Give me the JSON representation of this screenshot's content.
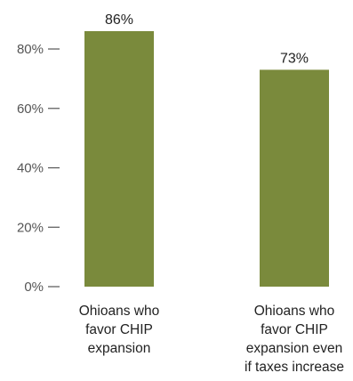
{
  "chart_data": {
    "type": "bar",
    "title": "",
    "xlabel": "",
    "ylabel": "",
    "ylim": [
      0,
      86
    ],
    "yticks": [
      0,
      20,
      40,
      60,
      80
    ],
    "ytick_labels": [
      "0%",
      "20%",
      "40%",
      "60%",
      "80%"
    ],
    "grid": false,
    "bar_color": "#7a8a3c",
    "categories": [
      [
        "Ohioans who",
        "favor CHIP",
        "expansion"
      ],
      [
        "Ohioans who",
        "favor CHIP",
        "expansion even",
        "if taxes increase"
      ]
    ],
    "values": [
      86,
      73
    ],
    "data_labels": [
      "86%",
      "73%"
    ]
  }
}
